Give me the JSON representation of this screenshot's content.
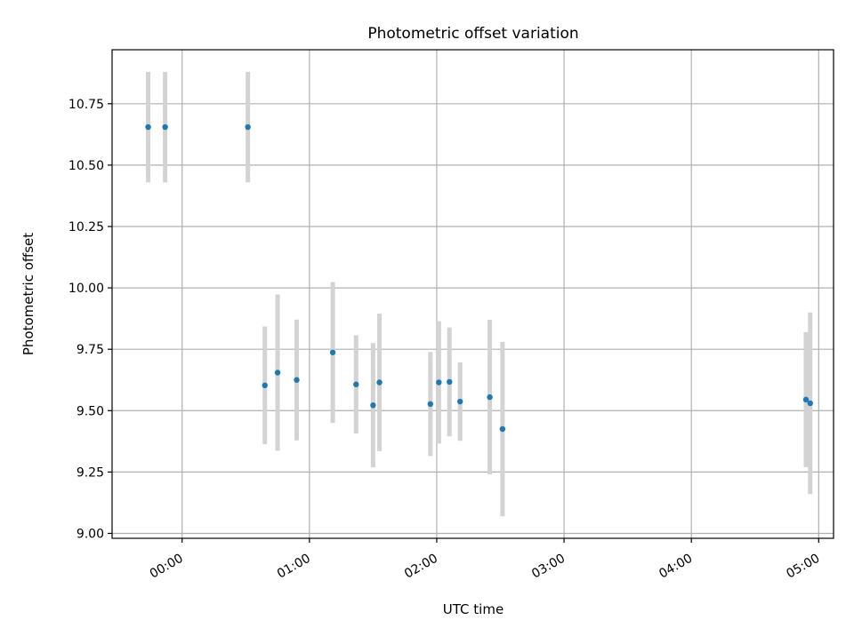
{
  "chart_data": {
    "type": "scatter",
    "title": "Photometric offset variation",
    "xlabel": "UTC time",
    "ylabel": "Photometric offset",
    "x_ticks": [
      "00:00",
      "01:00",
      "02:00",
      "03:00",
      "04:00",
      "05:00"
    ],
    "y_ticks": [
      "9.00",
      "9.25",
      "9.50",
      "9.75",
      "10.00",
      "10.25",
      "10.50",
      "10.75"
    ],
    "xlim": [
      "23:27",
      "05:07"
    ],
    "ylim": [
      8.98,
      10.97
    ],
    "grid": true,
    "colors": {
      "point": "#1f77b4",
      "errorbar": "#d3d3d3",
      "grid": "#b0b0b0"
    },
    "series": [
      {
        "points": [
          {
            "x": "23:44",
            "y": 10.655,
            "err": 0.225
          },
          {
            "x": "23:52",
            "y": 10.655,
            "err": 0.225
          },
          {
            "x": "00:31",
            "y": 10.655,
            "err": 0.225
          },
          {
            "x": "00:39",
            "y": 9.603,
            "err": 0.24
          },
          {
            "x": "00:45",
            "y": 9.655,
            "err": 0.318
          },
          {
            "x": "00:54",
            "y": 9.625,
            "err": 0.246
          },
          {
            "x": "01:11",
            "y": 9.737,
            "err": 0.287
          },
          {
            "x": "01:22",
            "y": 9.607,
            "err": 0.2
          },
          {
            "x": "01:30",
            "y": 9.522,
            "err": 0.253
          },
          {
            "x": "01:33",
            "y": 9.615,
            "err": 0.28
          },
          {
            "x": "01:57",
            "y": 9.527,
            "err": 0.212
          },
          {
            "x": "02:01",
            "y": 9.615,
            "err": 0.249
          },
          {
            "x": "02:06",
            "y": 9.617,
            "err": 0.222
          },
          {
            "x": "02:11",
            "y": 9.537,
            "err": 0.16
          },
          {
            "x": "02:25",
            "y": 9.555,
            "err": 0.315
          },
          {
            "x": "02:31",
            "y": 9.425,
            "err": 0.355
          },
          {
            "x": "04:54",
            "y": 9.545,
            "err": 0.275
          },
          {
            "x": "04:56",
            "y": 9.53,
            "err": 0.37
          }
        ]
      }
    ]
  }
}
